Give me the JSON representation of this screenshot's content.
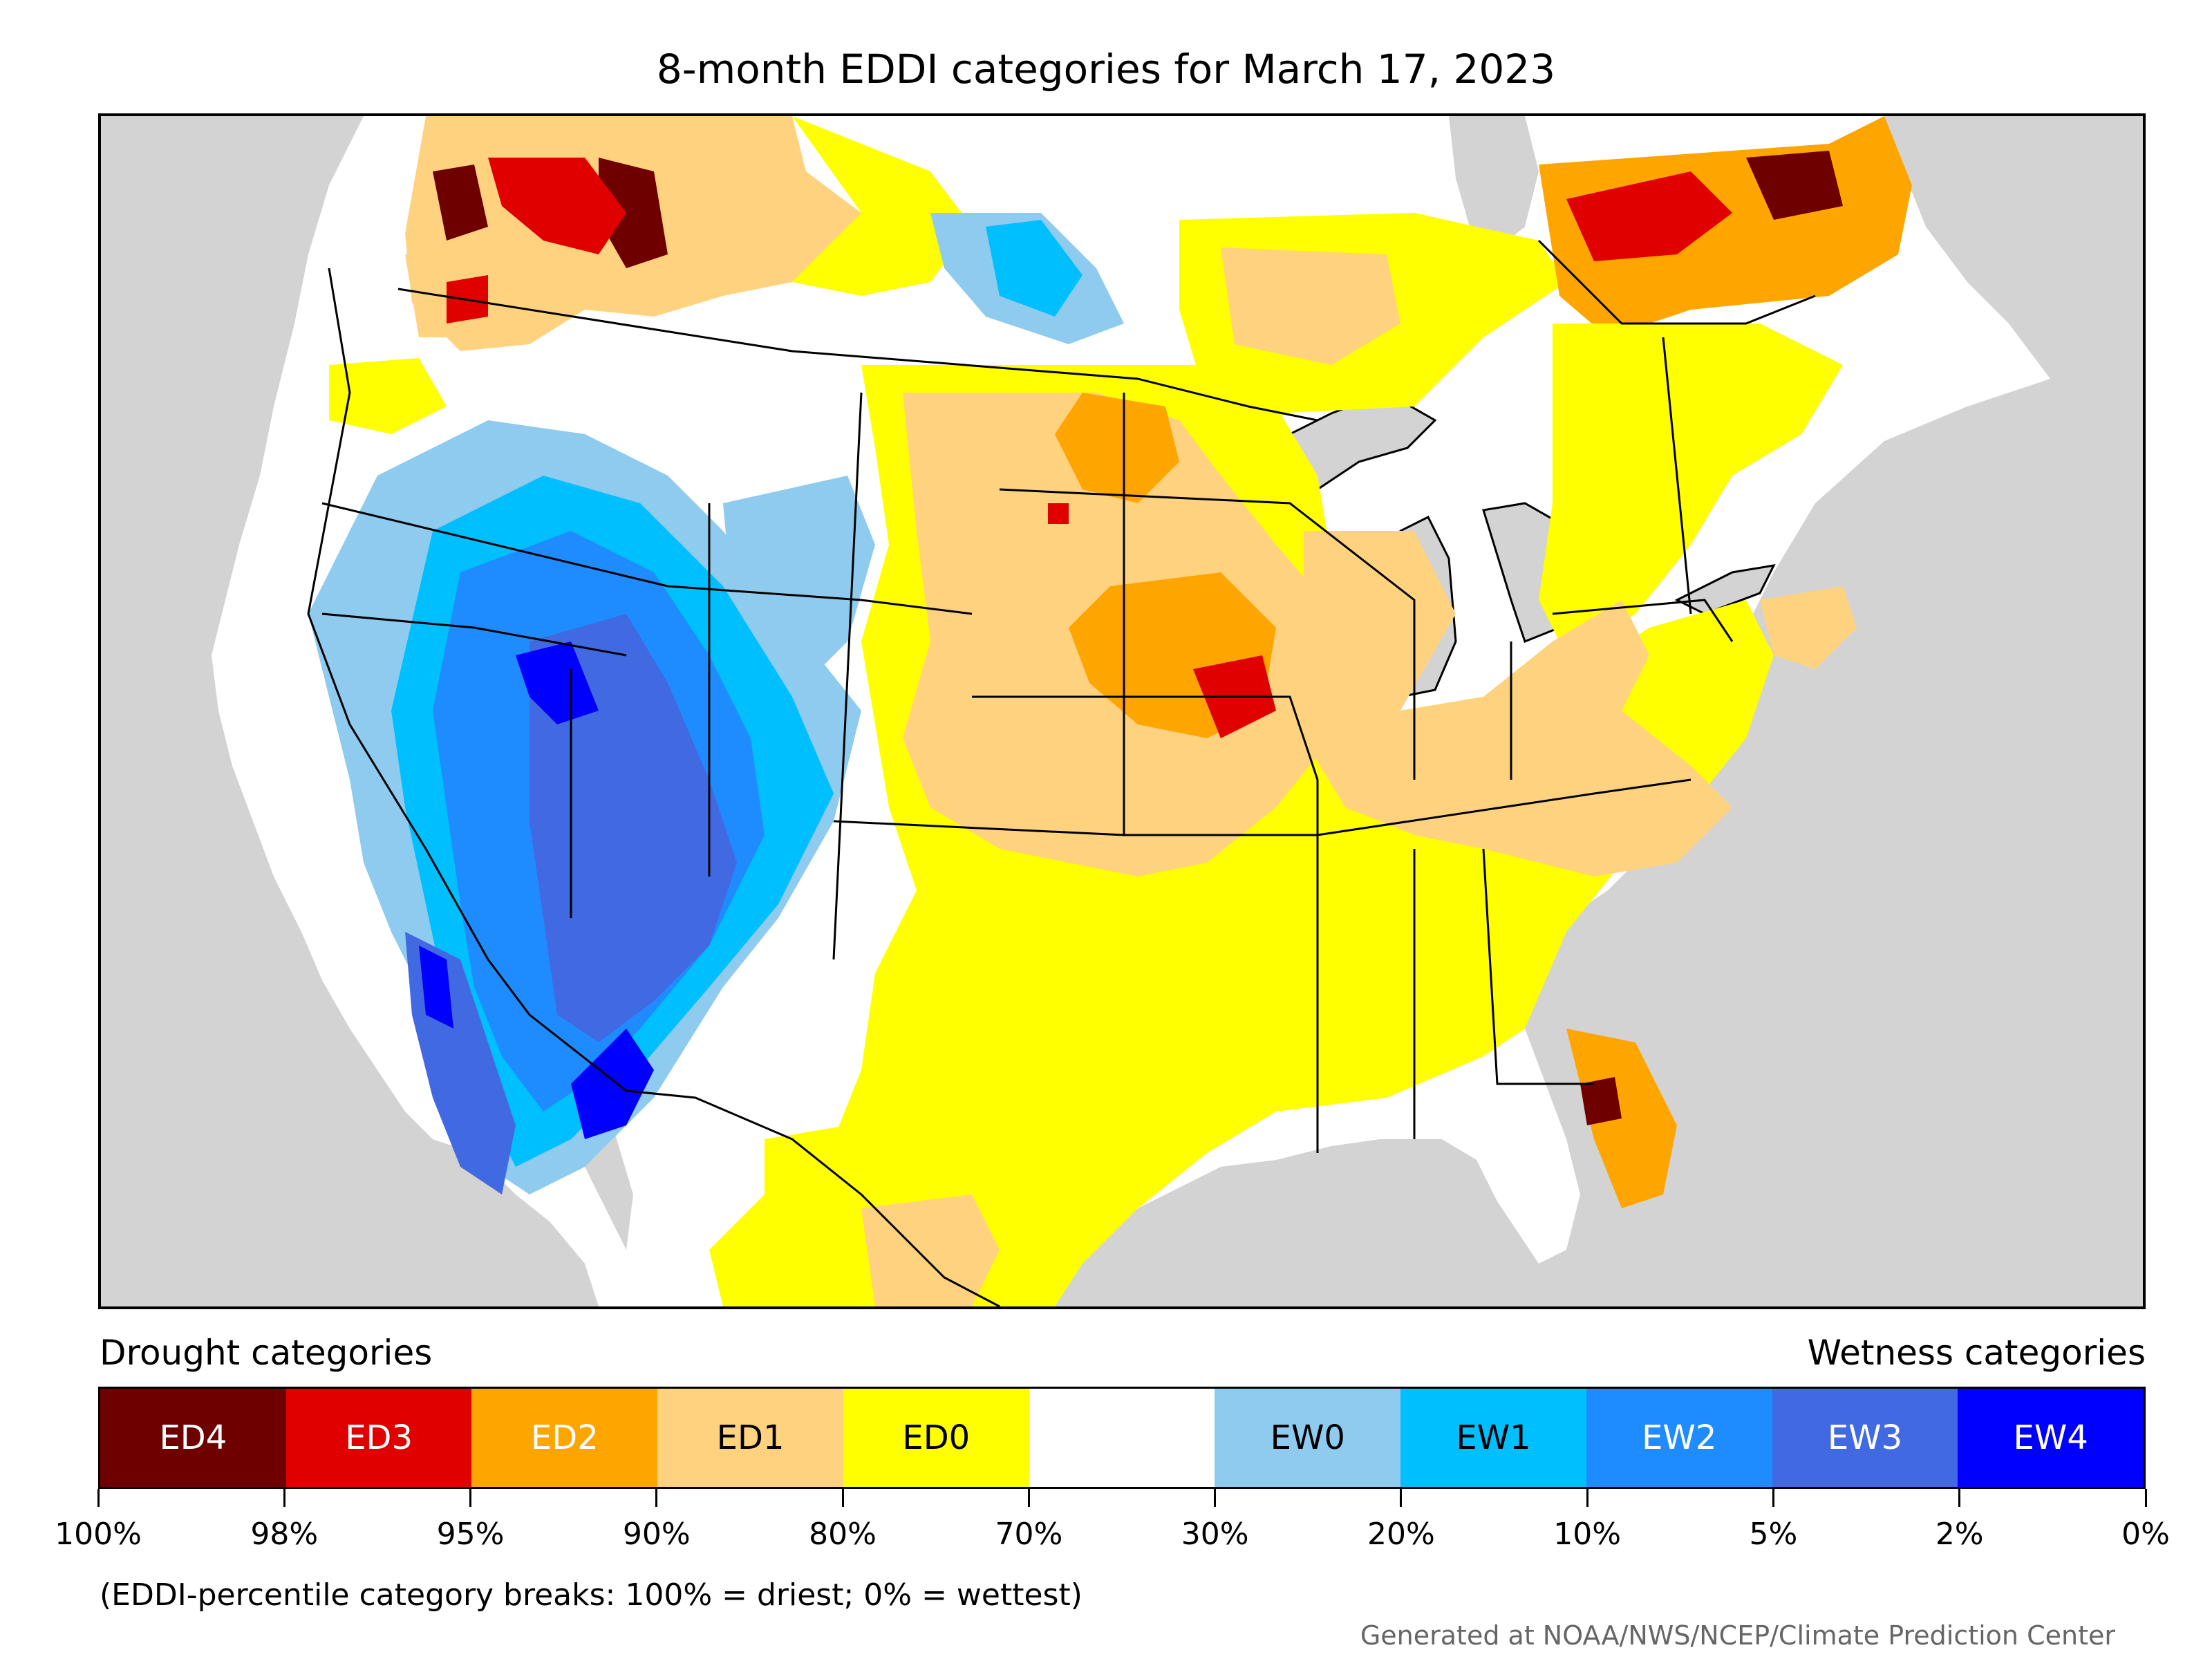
{
  "title": "8-month EDDI categories for March 17, 2023",
  "legend": {
    "drought_heading": "Drought categories",
    "wetness_heading": "Wetness categories",
    "categories": [
      {
        "label": "ED4",
        "color": "#6e0000",
        "text_color": "#ffffff"
      },
      {
        "label": "ED3",
        "color": "#e00000",
        "text_color": "#ffffff"
      },
      {
        "label": "ED2",
        "color": "#ffa500",
        "text_color": "#ffffff"
      },
      {
        "label": "ED1",
        "color": "#ffd27f",
        "text_color": "#000000"
      },
      {
        "label": "ED0",
        "color": "#ffff00",
        "text_color": "#000000"
      },
      {
        "label": "",
        "color": "#ffffff",
        "text_color": "#000000"
      },
      {
        "label": "EW0",
        "color": "#8ecbef",
        "text_color": "#000000"
      },
      {
        "label": "EW1",
        "color": "#00bfff",
        "text_color": "#000000"
      },
      {
        "label": "EW2",
        "color": "#1e8cff",
        "text_color": "#ffffff"
      },
      {
        "label": "EW3",
        "color": "#4169e1",
        "text_color": "#ffffff"
      },
      {
        "label": "EW4",
        "color": "#0000ff",
        "text_color": "#ffffff"
      }
    ],
    "breaks": [
      "100%",
      "98%",
      "95%",
      "90%",
      "80%",
      "70%",
      "30%",
      "20%",
      "10%",
      "5%",
      "2%",
      "0%"
    ]
  },
  "footnote": "(EDDI-percentile category breaks: 100% = driest; 0% = wettest)",
  "credit": "Generated at NOAA/NWS/NCEP/Climate Prediction Center",
  "map_colors": {
    "background": "#d3d3d3",
    "land": "#ffffff",
    "lakes": "#d3d3d3",
    "borders": "#000000"
  }
}
